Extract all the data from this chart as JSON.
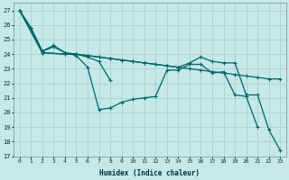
{
  "xlabel": "Humidex (Indice chaleur)",
  "background_color": "#c5e8e8",
  "grid_color": "#aed4d4",
  "line_color": "#006666",
  "xlim": [
    -0.5,
    23.5
  ],
  "ylim": [
    17,
    27.5
  ],
  "yticks": [
    17,
    18,
    19,
    20,
    21,
    22,
    23,
    24,
    25,
    26,
    27
  ],
  "xticks": [
    0,
    1,
    2,
    3,
    4,
    5,
    6,
    7,
    8,
    9,
    10,
    11,
    12,
    13,
    14,
    15,
    16,
    17,
    18,
    19,
    20,
    21,
    22,
    23
  ],
  "lines": [
    {
      "x": [
        0,
        1,
        2,
        3,
        4,
        5,
        6,
        7,
        8,
        9,
        10,
        11,
        12,
        13,
        14,
        15,
        16,
        17,
        18,
        19,
        20,
        21
      ],
      "y": [
        27,
        25.8,
        24.2,
        24.6,
        24.1,
        23.9,
        23.1,
        20.2,
        20.3,
        20.7,
        20.9,
        21.0,
        21.1,
        22.9,
        22.9,
        23.3,
        23.3,
        22.7,
        22.8,
        21.2,
        21.1,
        19.0
      ]
    },
    {
      "x": [
        0,
        1,
        2,
        3,
        4,
        5,
        6,
        7,
        8
      ],
      "y": [
        27,
        25.8,
        24.2,
        24.5,
        24.1,
        24.0,
        23.8,
        23.5,
        22.2
      ]
    },
    {
      "x": [
        0,
        2,
        4,
        5,
        6,
        7,
        8,
        9,
        10,
        11,
        12,
        13,
        14,
        15,
        16,
        17,
        18,
        19,
        20,
        21,
        22,
        23
      ],
      "y": [
        27,
        24.1,
        24.0,
        24.0,
        23.9,
        23.8,
        23.7,
        23.6,
        23.5,
        23.4,
        23.3,
        23.2,
        23.1,
        23.0,
        22.9,
        22.8,
        22.7,
        22.6,
        22.5,
        22.4,
        22.3,
        22.3
      ]
    },
    {
      "x": [
        0,
        2,
        4,
        5,
        6,
        7,
        8,
        9,
        10,
        11,
        12,
        13,
        14,
        15,
        16,
        17,
        18,
        19,
        20,
        21,
        22,
        23
      ],
      "y": [
        27,
        24.1,
        24.0,
        24.0,
        23.9,
        23.8,
        23.7,
        23.6,
        23.5,
        23.4,
        23.3,
        23.2,
        23.1,
        23.4,
        23.8,
        23.5,
        23.4,
        23.4,
        21.2,
        21.2,
        18.8,
        17.4
      ]
    }
  ]
}
